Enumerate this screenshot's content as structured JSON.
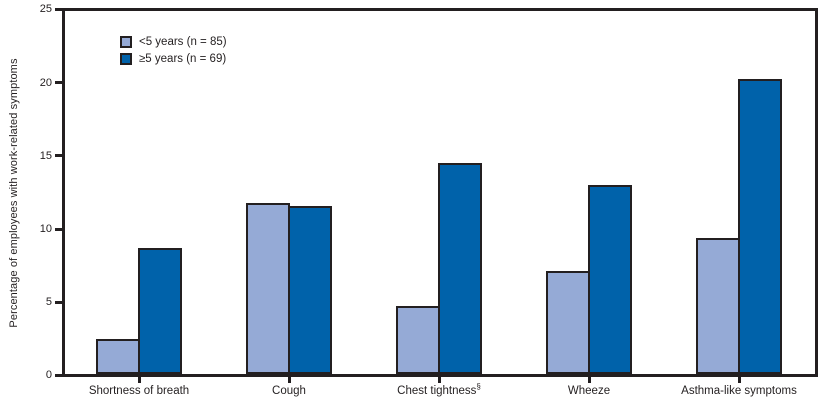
{
  "chart_data": {
    "type": "bar",
    "title": "",
    "xlabel": "",
    "ylabel": "Percentage of employees with work-related symptoms",
    "ylim": [
      0,
      25
    ],
    "ytick_labels": [
      "0",
      "5",
      "10",
      "15",
      "20",
      "25"
    ],
    "grid": false,
    "legend_position": "top-left-inside",
    "frame": "full-box",
    "categories": [
      "Shortness of breath",
      "Cough",
      "Chest tightness",
      "Wheeze",
      "Asthma-like symptoms"
    ],
    "category_markers": [
      "",
      "",
      "§",
      "",
      ""
    ],
    "series": [
      {
        "name": "<5 years (n = 85)",
        "color": "#95aad6",
        "values": [
          2.4,
          11.8,
          4.7,
          7.1,
          9.4
        ]
      },
      {
        "name": "≥5 years (n = 69)",
        "color": "#0062aa",
        "values": [
          8.7,
          11.6,
          14.5,
          13.0,
          20.3
        ]
      }
    ],
    "bar_outline_color": "#231f20"
  }
}
